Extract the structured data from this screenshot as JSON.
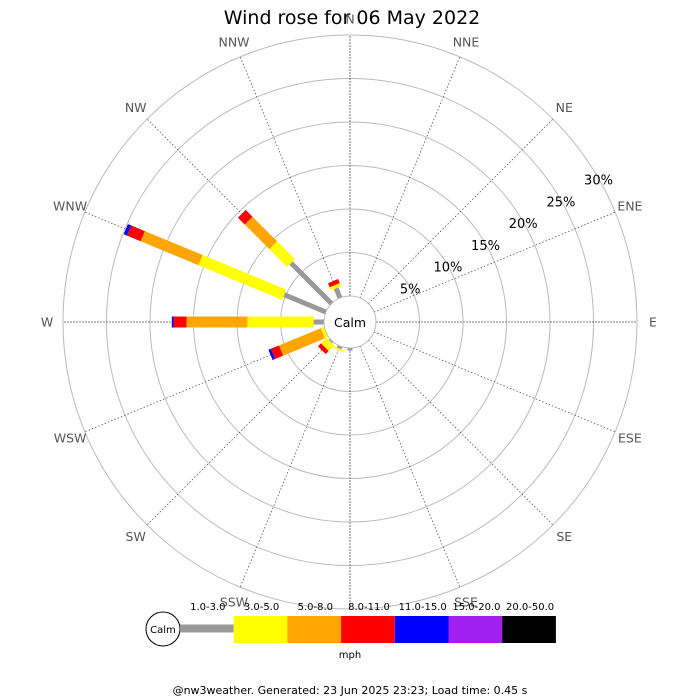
{
  "chart_data": {
    "type": "wind-rose",
    "title": "Wind rose for 06 May 2022",
    "directions": [
      "N",
      "NNE",
      "NE",
      "ENE",
      "E",
      "ESE",
      "SE",
      "SSE",
      "S",
      "SSW",
      "SW",
      "WSW",
      "W",
      "WNW",
      "NW",
      "NNW"
    ],
    "ring_labels": [
      "5%",
      "10%",
      "15%",
      "20%",
      "25%",
      "30%"
    ],
    "rings": [
      5,
      10,
      15,
      20,
      25,
      30
    ],
    "r_max": 30,
    "grid": true,
    "center_label": "Calm",
    "bins": [
      {
        "label": "1.0-3.0",
        "color": "#999999"
      },
      {
        "label": "3.0-5.0",
        "color": "#ffff00"
      },
      {
        "label": "5.0-8.0",
        "color": "#ffa500"
      },
      {
        "label": "8.0-11.0",
        "color": "#ff0000"
      },
      {
        "label": "11.0-15.0",
        "color": "#0000ff"
      },
      {
        "label": "15.0-20.0",
        "color": "#a020f0"
      },
      {
        "label": "20.0-50.0",
        "color": "#000000"
      }
    ],
    "legend_unit": "mph",
    "segments": [
      {
        "direction": "N",
        "values": [
          0,
          0,
          0,
          0,
          0,
          0,
          0
        ]
      },
      {
        "direction": "NNE",
        "values": [
          0,
          0,
          0,
          0,
          0,
          0,
          0
        ]
      },
      {
        "direction": "NE",
        "values": [
          0,
          0,
          0,
          0,
          0,
          0,
          0
        ]
      },
      {
        "direction": "ENE",
        "values": [
          0,
          0,
          0,
          0,
          0,
          0,
          0
        ]
      },
      {
        "direction": "E",
        "values": [
          0,
          0,
          0,
          0,
          0,
          0,
          0
        ]
      },
      {
        "direction": "ESE",
        "values": [
          0,
          0,
          0,
          0,
          0,
          0,
          0
        ]
      },
      {
        "direction": "SE",
        "values": [
          0,
          0,
          0,
          0,
          0,
          0,
          0
        ]
      },
      {
        "direction": "SSE",
        "values": [
          0,
          0,
          0,
          0,
          0,
          0,
          0
        ]
      },
      {
        "direction": "S",
        "values": [
          0.3,
          0,
          0,
          0,
          0,
          0,
          0
        ]
      },
      {
        "direction": "SSW",
        "values": [
          0.3,
          0.2,
          0,
          0,
          0,
          0,
          0
        ]
      },
      {
        "direction": "SW",
        "values": [
          0.2,
          0.9,
          0,
          0.5,
          0,
          0,
          0
        ]
      },
      {
        "direction": "WSW",
        "values": [
          0,
          0.4,
          5.2,
          1.0,
          0.3,
          0,
          0
        ]
      },
      {
        "direction": "W",
        "values": [
          1.2,
          7.6,
          7.0,
          1.5,
          0.2,
          0,
          0
        ]
      },
      {
        "direction": "WNW",
        "values": [
          5.2,
          10.4,
          7.2,
          1.7,
          0.4,
          0,
          0
        ]
      },
      {
        "direction": "NW",
        "values": [
          6.6,
          2.9,
          4.0,
          1.1,
          0,
          0,
          0
        ]
      },
      {
        "direction": "NNW",
        "values": [
          1.2,
          0.4,
          0,
          0.5,
          0,
          0,
          0
        ]
      }
    ]
  },
  "footer": "@nw3weather. Generated: 23 Jun 2025 23:23; Load time: 0.45 s"
}
